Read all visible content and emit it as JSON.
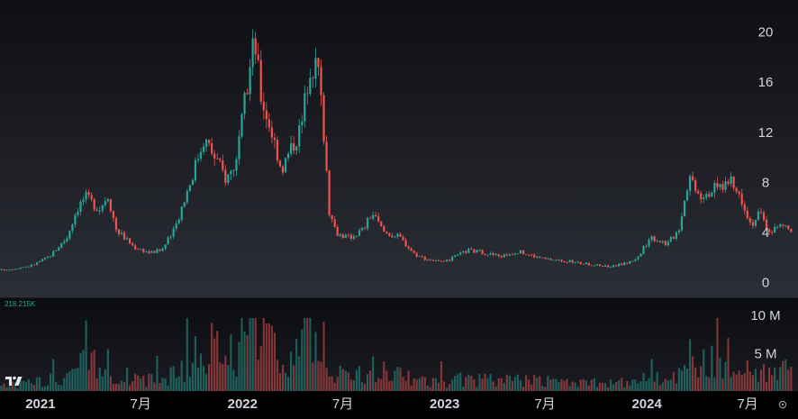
{
  "chart_data": {
    "type": "candlestick",
    "price_axis": {
      "ticks": [
        "20",
        "16",
        "12",
        "8",
        "4",
        "0"
      ],
      "tick_values": [
        20,
        16,
        12,
        8,
        4,
        0
      ],
      "ylim": [
        -1.2,
        22.5
      ]
    },
    "volume_axis": {
      "ticks": [
        "10 M",
        "5 M"
      ],
      "tick_values": [
        10000000,
        5000000
      ],
      "ylim": [
        0,
        12200000
      ],
      "last_volume_label": "218.215K"
    },
    "time_axis": {
      "ticks": [
        "2021",
        "7月",
        "2022",
        "7月",
        "2023",
        "7月",
        "2024",
        "7月"
      ],
      "tick_dates": [
        "2021-01-01",
        "2021-07-01",
        "2022-01-01",
        "2022-07-01",
        "2023-01-01",
        "2023-07-01",
        "2024-01-01",
        "2024-07-01"
      ],
      "xlim": [
        "2020-10-20",
        "2024-09-30"
      ]
    },
    "price_path": {
      "dates": [
        "2020-10-20",
        "2020-11-15",
        "2020-12-20",
        "2021-01-20",
        "2021-02-20",
        "2021-03-10",
        "2021-03-25",
        "2021-04-20",
        "2021-05-05",
        "2021-05-20",
        "2021-06-20",
        "2021-07-20",
        "2021-08-10",
        "2021-09-01",
        "2021-10-01",
        "2021-10-25",
        "2021-11-20",
        "2021-12-05",
        "2021-12-25",
        "2022-01-05",
        "2022-01-25",
        "2022-02-05",
        "2022-02-25",
        "2022-03-15",
        "2022-04-05",
        "2022-04-20",
        "2022-05-05",
        "2022-05-20",
        "2022-06-01",
        "2022-06-10",
        "2022-06-25",
        "2022-07-15",
        "2022-08-10",
        "2022-08-25",
        "2022-09-15",
        "2022-10-15",
        "2022-11-10",
        "2022-12-01",
        "2023-01-01",
        "2023-02-15",
        "2023-03-15",
        "2023-04-15",
        "2023-05-15",
        "2023-07-01",
        "2023-08-15",
        "2023-10-01",
        "2023-11-01",
        "2023-12-01",
        "2023-12-20",
        "2024-01-10",
        "2024-02-10",
        "2024-03-01",
        "2024-03-20",
        "2024-04-10",
        "2024-05-10",
        "2024-06-01",
        "2024-06-25",
        "2024-07-10",
        "2024-07-25",
        "2024-08-10",
        "2024-09-05",
        "2024-09-20"
      ],
      "close": [
        0.9,
        1.0,
        1.3,
        2.0,
        3.5,
        5.8,
        6.8,
        5.8,
        7.0,
        4.2,
        2.8,
        2.3,
        2.5,
        4.0,
        8.0,
        11.5,
        9.5,
        8.2,
        9.8,
        13.5,
        19.5,
        15.0,
        12.0,
        9.0,
        11.0,
        12.5,
        17.5,
        17.0,
        11.0,
        5.0,
        3.8,
        3.5,
        4.2,
        5.5,
        4.0,
        3.5,
        2.2,
        1.8,
        1.5,
        2.5,
        2.3,
        2.0,
        2.4,
        1.8,
        1.6,
        1.3,
        1.2,
        1.5,
        2.0,
        3.6,
        3.0,
        4.2,
        8.5,
        7.0,
        7.5,
        8.0,
        6.5,
        4.5,
        5.5,
        4.0,
        4.5,
        4.0
      ]
    },
    "colors": {
      "up": "#26a69a",
      "down": "#ef5350",
      "background": "#131722",
      "text": "#d1d4dc"
    }
  },
  "icons": {
    "logo": "tradingview-logo-icon",
    "settings": "settings-icon"
  }
}
